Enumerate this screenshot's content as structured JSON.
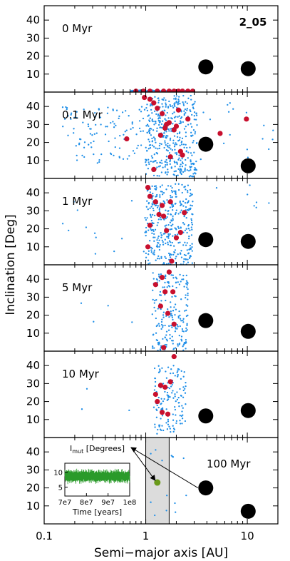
{
  "chart_data": {
    "type": "scatter",
    "simulation_id": "2_05",
    "xlabel": "Semi−major axis [AU]",
    "ylabel": "Inclination [Deg]",
    "xscale": "log",
    "xlim": [
      0.1,
      20
    ],
    "ylim": [
      0,
      48
    ],
    "x_ticks": [
      {
        "value": 0.1,
        "label": "0.1"
      },
      {
        "value": 1,
        "label": "1"
      },
      {
        "value": 10,
        "label": "10"
      }
    ],
    "y_ticks": [
      {
        "value": 10,
        "label": "10"
      },
      {
        "value": 20,
        "label": "20"
      },
      {
        "value": 30,
        "label": "30"
      },
      {
        "value": 40,
        "label": "40"
      }
    ],
    "colors": {
      "small_bodies": "#1f8fe8",
      "embryos": "#c8102e",
      "giants": "#000000",
      "inset_series": "#2a9a2a",
      "highlight_body": "#6a9a1a",
      "shade": "#dcdcdc"
    },
    "panels": [
      {
        "label": "0 Myr",
        "giants": [
          {
            "a": 3.9,
            "i": 14
          },
          {
            "a": 10.2,
            "i": 13
          }
        ],
        "clouds": [
          {
            "a_min": 0.7,
            "a_max": 3.0,
            "i_min": 0,
            "i_max": 1,
            "count": 160,
            "seed": 11
          }
        ],
        "embryos": [
          {
            "a": 0.8,
            "i": 0.5
          },
          {
            "a": 0.95,
            "i": 0.5
          },
          {
            "a": 1.1,
            "i": 0.5
          },
          {
            "a": 1.3,
            "i": 0.5
          },
          {
            "a": 1.5,
            "i": 0.5
          },
          {
            "a": 1.7,
            "i": 0.5
          },
          {
            "a": 1.9,
            "i": 0.5
          },
          {
            "a": 2.1,
            "i": 0.5
          },
          {
            "a": 2.3,
            "i": 0.5
          },
          {
            "a": 2.6,
            "i": 0.5
          },
          {
            "a": 2.9,
            "i": 0.5
          }
        ]
      },
      {
        "label": "0.1 Myr",
        "giants": [
          {
            "a": 3.9,
            "i": 19
          },
          {
            "a": 10.2,
            "i": 7
          }
        ],
        "clouds": [
          {
            "a_min": 1.0,
            "a_max": 3.2,
            "i_min": 1,
            "i_max": 46,
            "count": 420,
            "seed": 21
          },
          {
            "a_min": 0.15,
            "a_max": 1.0,
            "i_min": 8,
            "i_max": 40,
            "count": 110,
            "seed": 22
          },
          {
            "a_min": 3.2,
            "a_max": 18,
            "i_min": 2,
            "i_max": 47,
            "count": 20,
            "seed": 23
          }
        ],
        "embryos": [
          {
            "a": 0.65,
            "i": 22
          },
          {
            "a": 0.97,
            "i": 45
          },
          {
            "a": 1.1,
            "i": 44
          },
          {
            "a": 1.2,
            "i": 42
          },
          {
            "a": 1.3,
            "i": 39
          },
          {
            "a": 1.4,
            "i": 24
          },
          {
            "a": 1.45,
            "i": 36
          },
          {
            "a": 1.55,
            "i": 28
          },
          {
            "a": 1.6,
            "i": 30
          },
          {
            "a": 1.7,
            "i": 31
          },
          {
            "a": 1.75,
            "i": 12
          },
          {
            "a": 1.9,
            "i": 27
          },
          {
            "a": 2.0,
            "i": 29
          },
          {
            "a": 2.1,
            "i": 38
          },
          {
            "a": 2.2,
            "i": 15
          },
          {
            "a": 2.3,
            "i": 13
          },
          {
            "a": 2.6,
            "i": 33
          },
          {
            "a": 1.2,
            "i": 5
          },
          {
            "a": 5.4,
            "i": 25
          },
          {
            "a": 9.8,
            "i": 33
          }
        ]
      },
      {
        "label": "1 Myr",
        "giants": [
          {
            "a": 3.9,
            "i": 14
          },
          {
            "a": 10.2,
            "i": 13
          }
        ],
        "clouds": [
          {
            "a_min": 1.0,
            "a_max": 2.9,
            "i_min": 0,
            "i_max": 45,
            "count": 360,
            "seed": 31
          },
          {
            "a_min": 0.15,
            "a_max": 1.0,
            "i_min": 5,
            "i_max": 40,
            "count": 14,
            "seed": 32
          },
          {
            "a_min": 3.0,
            "a_max": 18,
            "i_min": 10,
            "i_max": 45,
            "count": 8,
            "seed": 33
          }
        ],
        "embryos": [
          {
            "a": 1.05,
            "i": 43
          },
          {
            "a": 1.1,
            "i": 38
          },
          {
            "a": 1.25,
            "i": 35
          },
          {
            "a": 1.35,
            "i": 28
          },
          {
            "a": 1.45,
            "i": 33
          },
          {
            "a": 1.1,
            "i": 22
          },
          {
            "a": 1.5,
            "i": 27
          },
          {
            "a": 1.6,
            "i": 19
          },
          {
            "a": 1.75,
            "i": 35
          },
          {
            "a": 2.0,
            "i": 15
          },
          {
            "a": 2.2,
            "i": 18
          },
          {
            "a": 1.05,
            "i": 10
          },
          {
            "a": 2.4,
            "i": 29
          },
          {
            "a": 1.8,
            "i": 2
          }
        ]
      },
      {
        "label": "5 Myr",
        "giants": [
          {
            "a": 3.9,
            "i": 17
          },
          {
            "a": 10.2,
            "i": 11
          }
        ],
        "clouds": [
          {
            "a_min": 1.15,
            "a_max": 2.6,
            "i_min": 0,
            "i_max": 44,
            "count": 210,
            "seed": 41
          },
          {
            "a_min": 0.2,
            "a_max": 1.1,
            "i_min": 15,
            "i_max": 32,
            "count": 4,
            "seed": 42
          }
        ],
        "embryos": [
          {
            "a": 1.25,
            "i": 37
          },
          {
            "a": 1.45,
            "i": 41
          },
          {
            "a": 1.55,
            "i": 33
          },
          {
            "a": 1.7,
            "i": 44
          },
          {
            "a": 1.85,
            "i": 33
          },
          {
            "a": 1.4,
            "i": 25
          },
          {
            "a": 1.65,
            "i": 21
          },
          {
            "a": 1.9,
            "i": 15
          },
          {
            "a": 1.5,
            "i": 2
          }
        ]
      },
      {
        "label": "10 Myr",
        "giants": [
          {
            "a": 3.9,
            "i": 12
          },
          {
            "a": 10.2,
            "i": 15
          }
        ],
        "clouds": [
          {
            "a_min": 1.2,
            "a_max": 2.5,
            "i_min": 2,
            "i_max": 40,
            "count": 140,
            "seed": 51
          },
          {
            "a_min": 0.2,
            "a_max": 1.0,
            "i_min": 14,
            "i_max": 28,
            "count": 3,
            "seed": 52
          }
        ],
        "embryos": [
          {
            "a": 1.25,
            "i": 24
          },
          {
            "a": 1.4,
            "i": 29
          },
          {
            "a": 1.55,
            "i": 28
          },
          {
            "a": 1.75,
            "i": 31
          },
          {
            "a": 1.9,
            "i": 45
          },
          {
            "a": 1.45,
            "i": 14
          },
          {
            "a": 1.65,
            "i": 13
          },
          {
            "a": 1.3,
            "i": 20
          }
        ]
      },
      {
        "label": "100 Myr",
        "giants": [
          {
            "a": 3.9,
            "i": 20
          },
          {
            "a": 10.2,
            "i": 7
          }
        ],
        "clouds": [
          {
            "a_min": 1.05,
            "a_max": 2.8,
            "i_min": 0,
            "i_max": 44,
            "count": 14,
            "seed": 61
          }
        ],
        "embryos": [],
        "highlight_body": {
          "a": 1.3,
          "i": 23
        },
        "shaded_band": {
          "a_min": 1.0,
          "a_max": 1.7
        },
        "inset": {
          "title": "I",
          "title_sub": "mut",
          "title_rest": " [Degrees]",
          "xlabel": "Time [years]",
          "xlim": [
            70000000,
            100000000
          ],
          "ylim": [
            2,
            13
          ],
          "x_ticks": [
            {
              "value": 70000000,
              "label": "7e7"
            },
            {
              "value": 80000000,
              "label": "8e7"
            },
            {
              "value": 90000000,
              "label": "9e7"
            },
            {
              "value": 100000000,
              "label": "1e8"
            }
          ],
          "y_ticks": [
            {
              "value": 5,
              "label": "5"
            },
            {
              "value": 10,
              "label": "10"
            }
          ],
          "series_mean": 8.6,
          "series_amplitude": 2.6
        }
      }
    ]
  }
}
